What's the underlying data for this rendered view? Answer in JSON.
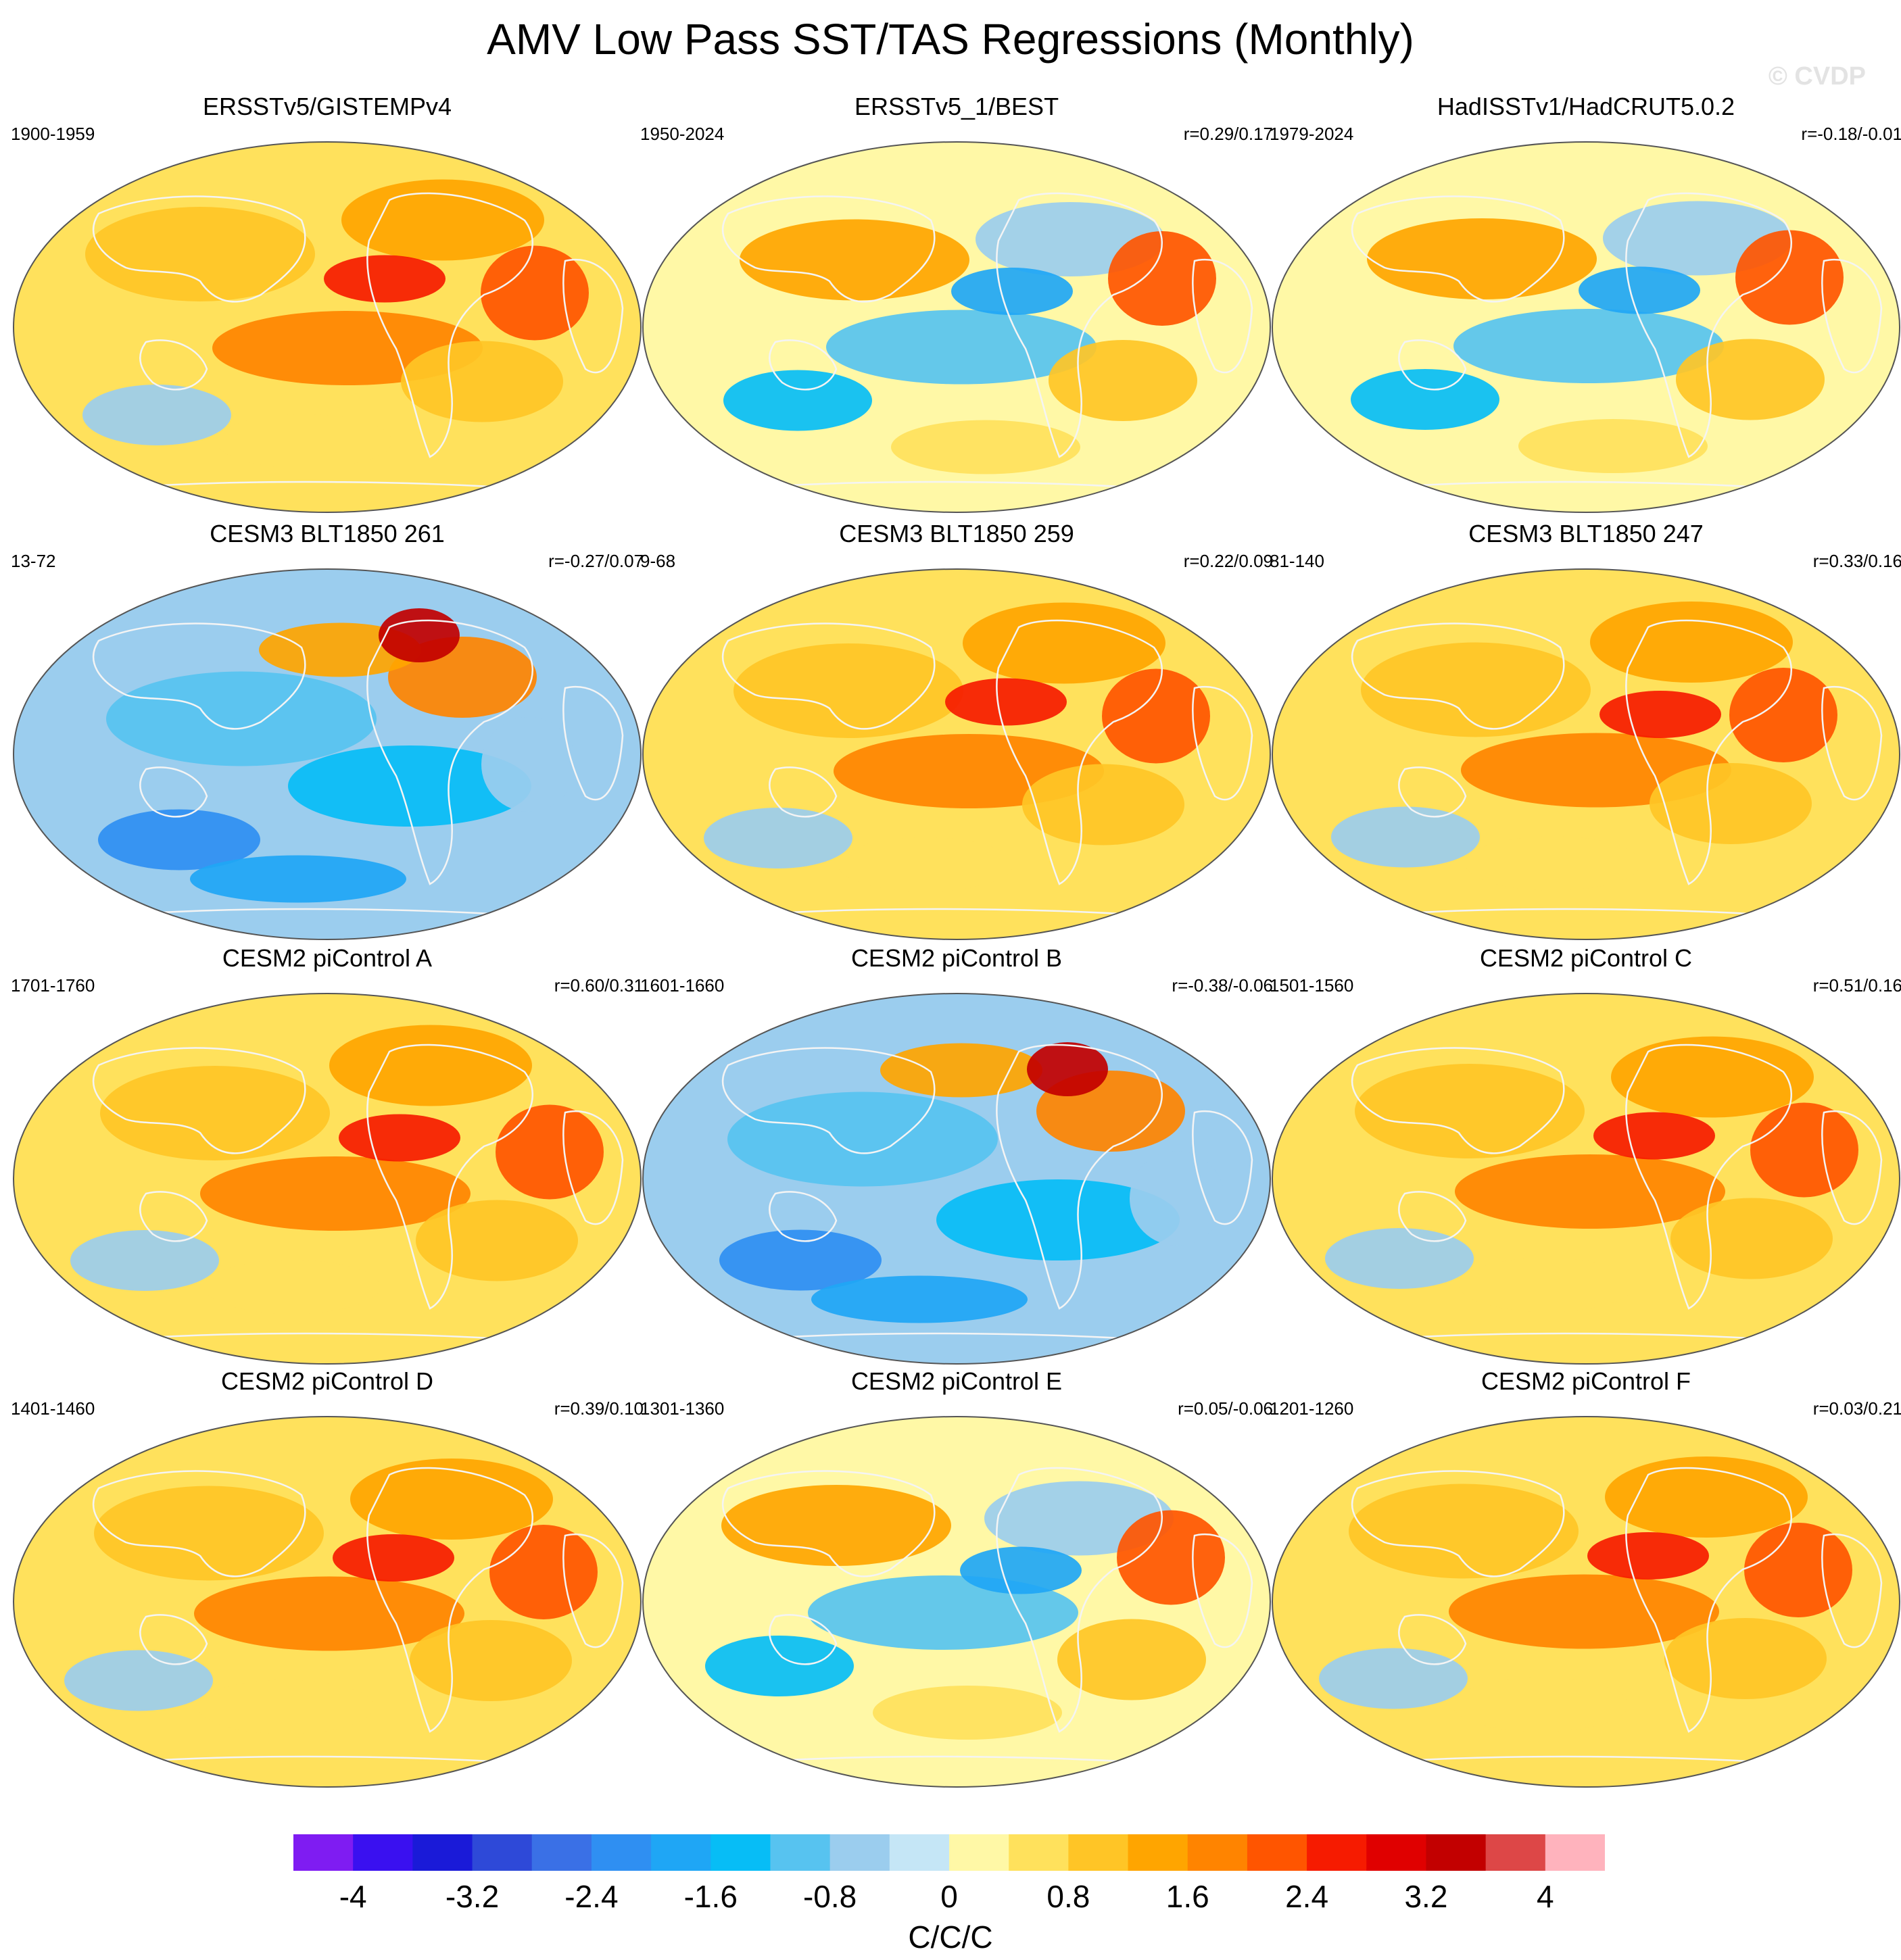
{
  "title": "AMV Low Pass SST/TAS Regressions (Monthly)",
  "watermark": "© CVDP",
  "colorbar": {
    "units": "C/C/C",
    "labels": [
      "-4",
      "-3.2",
      "-2.4",
      "-1.6",
      "-0.8",
      "0",
      "0.8",
      "1.6",
      "2.4",
      "3.2",
      "4"
    ],
    "colors": [
      "#7f1cf2",
      "#3a10f0",
      "#1a1ad8",
      "#2e49d8",
      "#3a70e6",
      "#2f8ff2",
      "#1fa6f5",
      "#07bdf6",
      "#57c3f0",
      "#9bcdee",
      "#c5e6f6",
      "#fff8a6",
      "#ffe15c",
      "#ffc526",
      "#ffa500",
      "#ff8400",
      "#ff5500",
      "#f61b00",
      "#e00000",
      "#c20000",
      "#dd4747",
      "#ffb3bd"
    ]
  },
  "panels": [
    {
      "title": "ERSSTv5/GISTEMPv4",
      "years": "1900-1959",
      "corr": "",
      "dominant": "warm"
    },
    {
      "title": "ERSSTv5_1/BEST",
      "years": "1950-2024",
      "corr": "r=0.29/0.17",
      "dominant": "mixed"
    },
    {
      "title": "HadISSTv1/HadCRUT5.0.2",
      "years": "1979-2024",
      "corr": "r=-0.18/-0.01",
      "dominant": "mixed"
    },
    {
      "title": "CESM3 BLT1850 261",
      "years": "13-72",
      "corr": "r=-0.27/0.07",
      "dominant": "cool"
    },
    {
      "title": "CESM3 BLT1850 259",
      "years": "9-68",
      "corr": "r=0.22/0.09",
      "dominant": "warm"
    },
    {
      "title": "CESM3 BLT1850 247",
      "years": "81-140",
      "corr": "r=0.33/0.16",
      "dominant": "warm"
    },
    {
      "title": "CESM2 piControl A",
      "years": "1701-1760",
      "corr": "r=0.60/0.31",
      "dominant": "warm"
    },
    {
      "title": "CESM2 piControl B",
      "years": "1601-1660",
      "corr": "r=-0.38/-0.06",
      "dominant": "cool"
    },
    {
      "title": "CESM2 piControl C",
      "years": "1501-1560",
      "corr": "r=0.51/0.16",
      "dominant": "warm"
    },
    {
      "title": "CESM2 piControl D",
      "years": "1401-1460",
      "corr": "r=0.39/0.10",
      "dominant": "warm"
    },
    {
      "title": "CESM2 piControl E",
      "years": "1301-1360",
      "corr": "r=0.05/-0.06",
      "dominant": "mixed"
    },
    {
      "title": "CESM2 piControl F",
      "years": "1201-1260",
      "corr": "r=0.03/0.21",
      "dominant": "warm"
    }
  ]
}
